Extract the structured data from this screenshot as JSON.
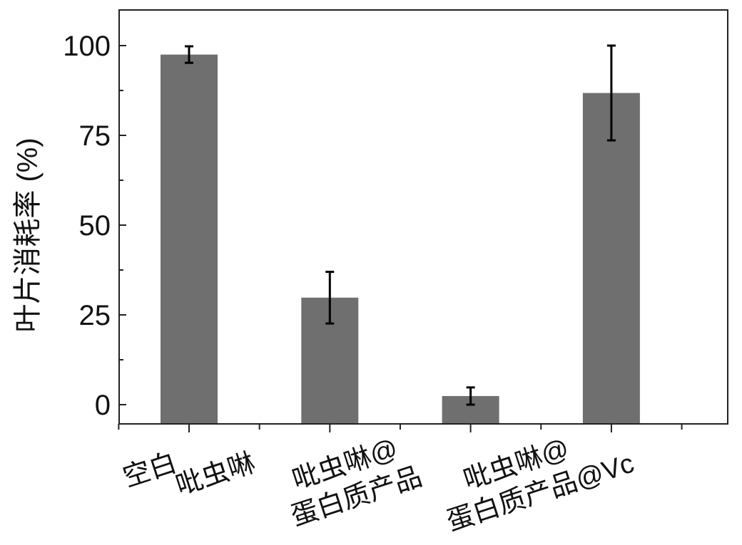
{
  "chart_data": {
    "type": "bar",
    "title": "",
    "xlabel": "",
    "ylabel": "叶片消耗率 (%)",
    "categories": [
      [
        "空白"
      ],
      [
        "吡虫啉"
      ],
      [
        "吡虫啉@",
        "蛋白质产品"
      ],
      [
        "吡虫啉@",
        "蛋白质产品@Vc"
      ]
    ],
    "values": [
      97.5,
      29.8,
      2.4,
      86.8
    ],
    "errors": [
      2.3,
      7.2,
      2.4,
      13.2
    ],
    "ylim": [
      -5,
      110
    ],
    "yticks": [
      0,
      25,
      50,
      75,
      100
    ],
    "grid": false,
    "bar_color": "#6f6f6f",
    "error_color": "#000000"
  }
}
